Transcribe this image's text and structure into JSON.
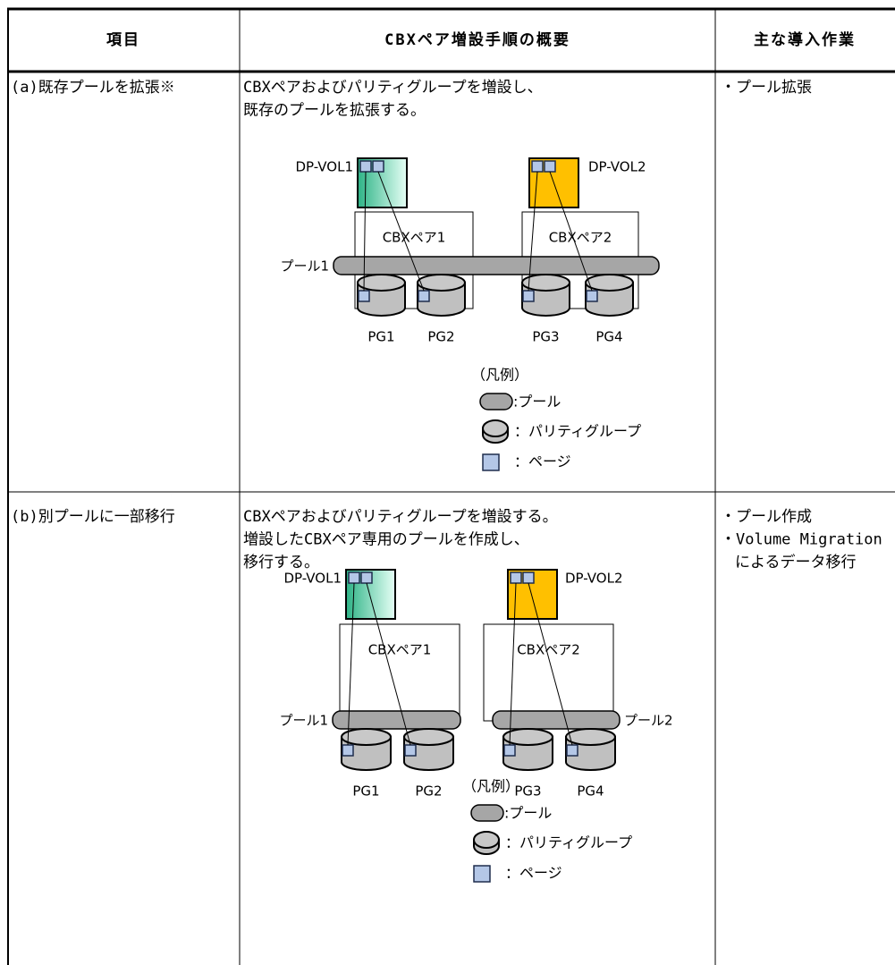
{
  "table": {
    "header": [
      "項目",
      "CBXペア増設手順の概要",
      "主な導入作業"
    ],
    "rows": [
      {
        "item": "(a)既存プールを拡張※",
        "summary": [
          "CBXペアおよびパリティグループを増設し、",
          "既存のプールを拡張する。"
        ],
        "diagram": {
          "vol1": "DP-VOL1",
          "vol2": "DP-VOL2",
          "cbx1": "CBXペア1",
          "cbx2": "CBXペア2",
          "pools": [
            "プール1"
          ],
          "pgs": [
            "PG1",
            "PG2",
            "PG3",
            "PG4"
          ],
          "legend": {
            "title": "（凡例）",
            "pool": ":プール",
            "parity": "：パリティグループ",
            "page": "：ページ"
          }
        },
        "work": [
          "・プール拡張"
        ]
      },
      {
        "item": "(b)別プールに一部移行",
        "summary": [
          "CBXペアおよびパリティグループを増設する。",
          "増設したCBXペア専用のプールを作成し、",
          "移行する。"
        ],
        "diagram": {
          "vol1": "DP-VOL1",
          "vol2": "DP-VOL2",
          "cbx1": "CBXペア1",
          "cbx2": "CBXペア2",
          "pools": [
            "プール1",
            "プール2"
          ],
          "pgs": [
            "PG1",
            "PG2",
            "PG3",
            "PG4"
          ],
          "legend": {
            "title": "（凡例）",
            "pool": ":プール",
            "parity": "：パリティグループ",
            "page": "：ページ"
          }
        },
        "work": [
          "・プール作成",
          "・Volume Migration",
          "によるデータ移行"
        ]
      }
    ]
  }
}
